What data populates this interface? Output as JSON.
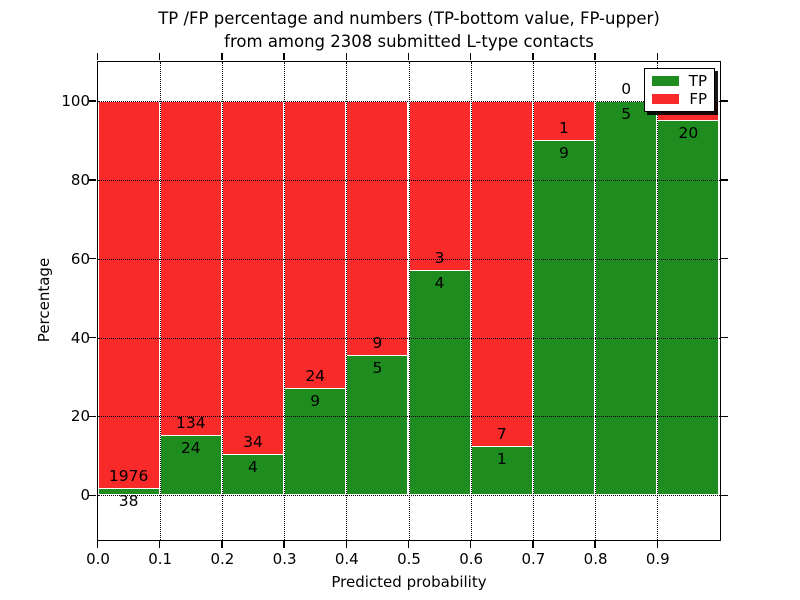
{
  "title": {
    "line1": "TP /FP percentage and numbers (TP-bottom value, FP-upper)",
    "line2": "from among 2308 submitted L-type contacts"
  },
  "axes": {
    "ylabel": "Percentage",
    "xlabel": "Predicted probability",
    "ytick_labels": [
      "0",
      "20",
      "40",
      "60",
      "80",
      "100"
    ],
    "ytick_values": [
      0,
      20,
      40,
      60,
      80,
      100
    ],
    "xtick_labels": [
      "0.0",
      "0.1",
      "0.2",
      "0.3",
      "0.4",
      "0.5",
      "0.6",
      "0.7",
      "0.8",
      "0.9"
    ],
    "xtick_values": [
      0.0,
      0.1,
      0.2,
      0.3,
      0.4,
      0.5,
      0.6,
      0.7,
      0.8,
      0.9
    ]
  },
  "legend": {
    "items": [
      {
        "label": "TP",
        "color": "#1e8c1e"
      },
      {
        "label": "FP",
        "color": "#f92a2a"
      }
    ]
  },
  "colors": {
    "tp_green": "#1e8c1e",
    "fp_red": "#f92a2a",
    "bar_edge": "#ffffff",
    "axis": "#000000",
    "background": "#ffffff"
  },
  "chart_data": {
    "type": "bar",
    "stacked": true,
    "orientation": "vertical",
    "title": "TP /FP percentage and numbers (TP-bottom value, FP-upper) from among 2308 submitted L-type contacts",
    "xlabel": "Predicted probability",
    "ylabel": "Percentage",
    "xlim": [
      0.0,
      1.0
    ],
    "ylim": [
      -11.2,
      110
    ],
    "grid": "dotted both axes",
    "legend_position": "upper right",
    "bin_start": [
      0.0,
      0.1,
      0.2,
      0.3,
      0.4,
      0.5,
      0.6,
      0.7,
      0.8,
      0.9
    ],
    "bin_width": 0.1,
    "series": [
      {
        "name": "TP",
        "color": "#1e8c1e",
        "percent": [
          1.9,
          15.2,
          10.5,
          27.3,
          35.7,
          57.1,
          12.5,
          90.0,
          100.0,
          95.2
        ],
        "count_labels": [
          "38",
          "24",
          "4",
          "9",
          "5",
          "4",
          "1",
          "9",
          "5",
          "20"
        ]
      },
      {
        "name": "FP",
        "color": "#f92a2a",
        "percent": [
          98.1,
          84.8,
          89.5,
          72.7,
          64.3,
          42.9,
          87.5,
          10.0,
          0.0,
          4.8
        ],
        "count_labels": [
          "1976",
          "134",
          "34",
          "24",
          "9",
          "3",
          "7",
          "1",
          "0",
          ""
        ]
      }
    ]
  }
}
